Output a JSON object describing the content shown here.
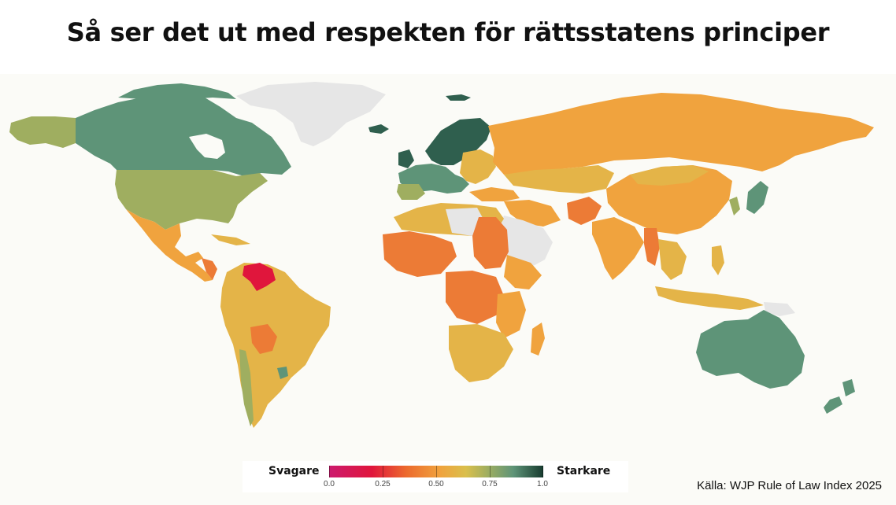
{
  "title": "Så ser det ut med respekten för rättsstatens principer",
  "legend": {
    "weak_label": "Svagare",
    "strong_label": "Starkare",
    "ticks": [
      "0.0",
      "0.25",
      "0.50",
      "0.75",
      "1.0"
    ],
    "tick_values": [
      0,
      0.25,
      0.5,
      0.75,
      1
    ]
  },
  "source": "Källa: WJP Rule of Law Index 2025",
  "colors": {
    "background": "#fbfbf7",
    "no_data": "#e6e6e6",
    "very_weak": "#e0163c",
    "weak": "#ec7b36",
    "medium_low": "#f0a33e",
    "medium": "#e4b448",
    "medium_high": "#9fae60",
    "strong": "#5e9478",
    "very_strong": "#2f5f4e"
  },
  "map_data": [
    {
      "region": "Canada",
      "score_band": "strong"
    },
    {
      "region": "United States",
      "score_band": "medium_high"
    },
    {
      "region": "Alaska",
      "score_band": "medium_high"
    },
    {
      "region": "Mexico",
      "score_band": "weak"
    },
    {
      "region": "Venezuela",
      "score_band": "very_weak"
    },
    {
      "region": "Brazil",
      "score_band": "medium"
    },
    {
      "region": "Uruguay",
      "score_band": "strong"
    },
    {
      "region": "Nordic countries",
      "score_band": "very_strong"
    },
    {
      "region": "Western Europe",
      "score_band": "strong"
    },
    {
      "region": "Russia",
      "score_band": "medium_low"
    },
    {
      "region": "China",
      "score_band": "medium_low"
    },
    {
      "region": "Afghanistan",
      "score_band": "weak"
    },
    {
      "region": "Myanmar",
      "score_band": "weak"
    },
    {
      "region": "India",
      "score_band": "medium_low"
    },
    {
      "region": "Japan",
      "score_band": "strong"
    },
    {
      "region": "Australia",
      "score_band": "strong"
    },
    {
      "region": "New Zealand",
      "score_band": "strong"
    },
    {
      "region": "Sudan",
      "score_band": "weak"
    },
    {
      "region": "DR Congo",
      "score_band": "weak"
    },
    {
      "region": "Southern Africa",
      "score_band": "medium"
    },
    {
      "region": "Greenland",
      "score_band": "no_data"
    },
    {
      "region": "Arabian Peninsula",
      "score_band": "no_data"
    }
  ]
}
